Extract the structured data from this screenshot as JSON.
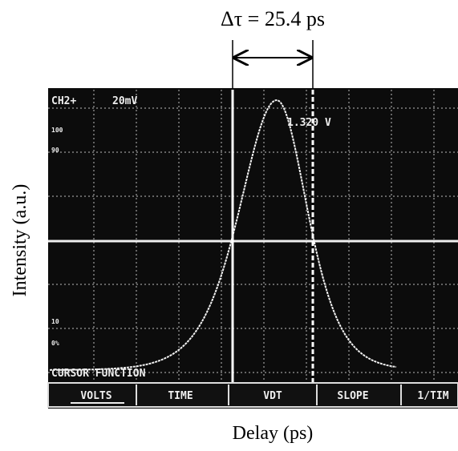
{
  "annotation": "Δτ = 25.4 ps",
  "y_label": "Intensity (a.u.)",
  "x_label": "Delay (ps)",
  "screen": {
    "channel": "CH2+",
    "scale": "20mV",
    "cursor_readout": "1.320 V",
    "level_labels": [
      "100",
      "90",
      "10",
      "0%"
    ],
    "function_label": "CURSOR FUNCTION",
    "menu": [
      "VOLTS",
      "TIME",
      "VDT",
      "SLOPE",
      "1/TIM"
    ]
  }
}
